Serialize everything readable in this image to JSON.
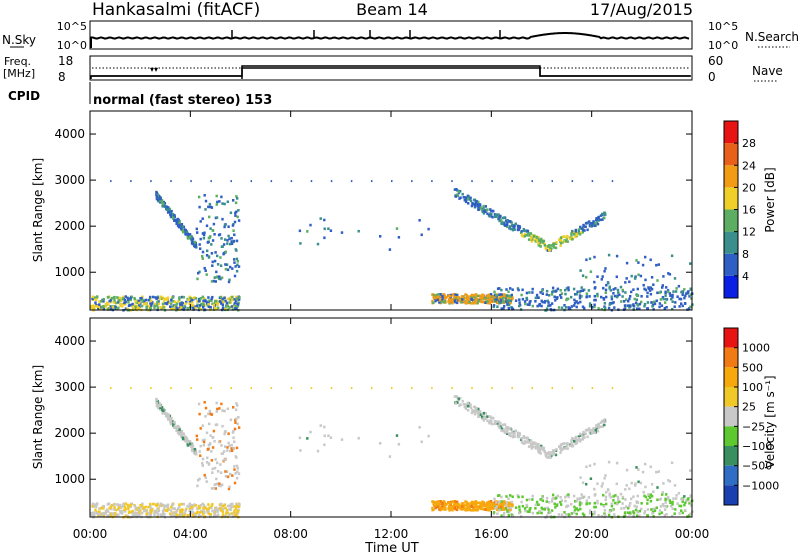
{
  "header": {
    "station": "Hankasalmi (fitACF)",
    "beam": "Beam 14",
    "date": "17/Aug/2015"
  },
  "aux": {
    "nsky_label": "N.Sky",
    "nsky_ticks": [
      "10^5",
      "10^0"
    ],
    "nsearch_label": "N.Search",
    "nsearch_ticks": [
      "10^5",
      "10^0"
    ],
    "freq_label_line1": "Freq.",
    "freq_label_line2": "[MHz]",
    "freq_ticks": [
      "18",
      "8"
    ],
    "nave_label": "Nave",
    "nave_ticks": [
      "60",
      "0"
    ],
    "cpid_label": "CPID",
    "cpid_text": "normal (fast stereo) 153"
  },
  "chart_data": [
    {
      "type": "heatmap",
      "ylabel": "Slant Range [km]",
      "yticks": [
        "1000",
        "2000",
        "3000",
        "4000"
      ],
      "ylim": [
        180,
        4500
      ],
      "xlim": [
        "00:00",
        "24:00"
      ],
      "colorbar": {
        "label": "Power [dB]",
        "ticks": [
          "4",
          "8",
          "12",
          "16",
          "20",
          "24",
          "28"
        ],
        "colors": [
          "#0a1fe6",
          "#2f5ec4",
          "#3a8f8c",
          "#5dae63",
          "#f0d028",
          "#f29b14",
          "#e8601a",
          "#e81414"
        ]
      }
    },
    {
      "type": "heatmap",
      "ylabel": "Slant Range [km]",
      "yticks": [
        "1000",
        "2000",
        "3000",
        "4000"
      ],
      "ylim": [
        180,
        4500
      ],
      "xlim": [
        "00:00",
        "24:00"
      ],
      "colorbar": {
        "label": "Velocity [m s⁻¹]",
        "ticks": [
          "1000",
          "500",
          "100",
          "25",
          "−25",
          "−100",
          "−500",
          "−1000"
        ],
        "colors": [
          "#e81414",
          "#f27a14",
          "#f7a80c",
          "#f0c828",
          "#c8c8c8",
          "#5dc830",
          "#3a8f60",
          "#2f6ec4",
          "#1a3fb0"
        ]
      }
    }
  ],
  "xaxis": {
    "label": "Time UT",
    "ticks": [
      "00:00",
      "04:00",
      "08:00",
      "12:00",
      "16:00",
      "20:00",
      "00:00"
    ]
  }
}
